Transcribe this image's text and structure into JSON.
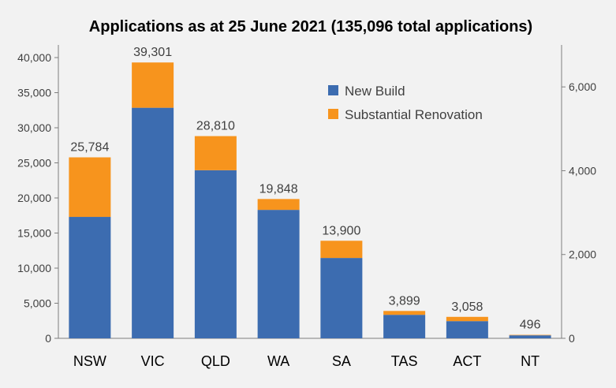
{
  "chart_data": {
    "type": "bar",
    "stacked": true,
    "title": "Applications as at 25 June 2021 (135,096 total applications)",
    "categories": [
      "NSW",
      "VIC",
      "QLD",
      "WA",
      "SA",
      "TAS",
      "ACT",
      "NT"
    ],
    "series": [
      {
        "name": "New Build",
        "color": "#3c6cb0",
        "values": [
          17300,
          32850,
          23950,
          18300,
          11450,
          3350,
          2450,
          430
        ]
      },
      {
        "name": "Substantial Renovation",
        "color": "#f7941d",
        "values": [
          8484,
          6451,
          4860,
          1548,
          2450,
          549,
          608,
          66
        ]
      }
    ],
    "totals": [
      25784,
      39301,
      28810,
      19848,
      13900,
      3899,
      3058,
      496
    ],
    "total_labels": [
      "25,784",
      "39,301",
      "28,810",
      "19,848",
      "13,900",
      "3,899",
      "3,058",
      "496"
    ],
    "ylim": [
      0,
      40000
    ],
    "y_ticks": [
      "0",
      "5,000",
      "10,000",
      "15,000",
      "20,000",
      "25,000",
      "30,000",
      "35,000",
      "40,000"
    ],
    "y2lim": [
      0,
      6700
    ],
    "y2_ticks": [
      "0",
      "2,000",
      "4,000",
      "6,000"
    ],
    "legend_position": "top-right",
    "grid": false
  }
}
